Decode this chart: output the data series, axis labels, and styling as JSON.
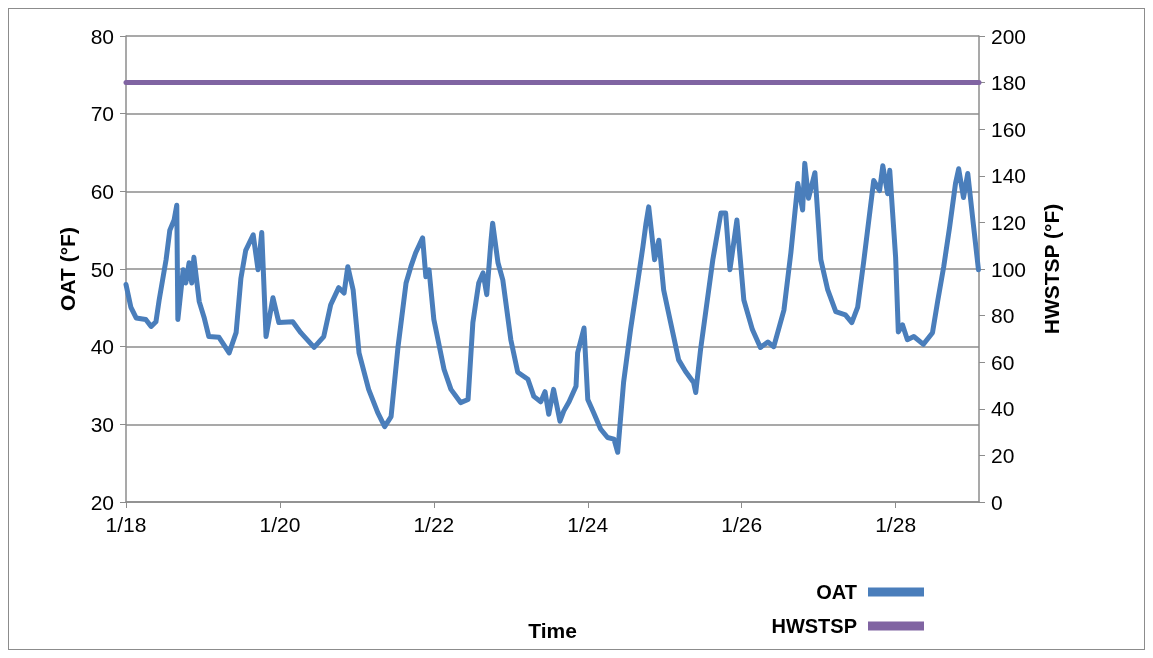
{
  "chart_data": {
    "type": "line",
    "xlabel": "Time",
    "ylabel": "OAT (°F)",
    "y2label": "HWSTSP (°F)",
    "xlim": [
      "--01-18",
      "--01-29T02:00"
    ],
    "xticks": [
      {
        "value": "--01-18",
        "label": "1/18"
      },
      {
        "value": "--01-20",
        "label": "1/20"
      },
      {
        "value": "--01-22",
        "label": "1/22"
      },
      {
        "value": "--01-24",
        "label": "1/24"
      },
      {
        "value": "--01-26",
        "label": "1/26"
      },
      {
        "value": "--01-28",
        "label": "1/28"
      }
    ],
    "ylim": [
      20,
      80
    ],
    "yticks": [
      20,
      30,
      40,
      50,
      60,
      70,
      80
    ],
    "y2lim": [
      0,
      200
    ],
    "y2ticks": [
      0,
      20,
      40,
      60,
      80,
      100,
      120,
      140,
      160,
      180,
      200
    ],
    "grid": "y",
    "legend": "bottom right",
    "marker": "none",
    "line_style": "solid",
    "series": [
      {
        "name": "OAT",
        "color": "#4a7ebb",
        "x": [
          "--01-18T00:00",
          "--01-18T01:30",
          "--01-18T03:10",
          "--01-18T06:10",
          "--01-18T07:50",
          "--01-18T09:20",
          "--01-18T10:20",
          "--01-18T12:30",
          "--01-18T13:40",
          "--01-18T15:00",
          "--01-18T15:50",
          "--01-18T16:10",
          "--01-18T17:50",
          "--01-18T18:40",
          "--01-18T19:40",
          "--01-18T20:30",
          "--01-18T21:10",
          "--01-18T22:50",
          "--01-19T00:20",
          "--01-19T01:50",
          "--01-19T05:00",
          "--01-19T08:10",
          "--01-19T10:20",
          "--01-19T11:50",
          "--01-19T13:20",
          "--01-19T15:40",
          "--01-19T17:10",
          "--01-19T18:20",
          "--01-19T19:40",
          "--01-19T21:50",
          "--01-19T23:40",
          "--01-20T04:00",
          "--01-20T06:30",
          "--01-20T10:40",
          "--01-20T13:40",
          "--01-20T15:50",
          "--01-20T18:20",
          "--01-20T20:00",
          "--01-20T21:10",
          "--01-20T22:50",
          "--01-21T00:40",
          "--01-21T03:40",
          "--01-21T06:30",
          "--01-21T08:40",
          "--01-21T10:40",
          "--01-21T12:50",
          "--01-21T15:20",
          "--01-21T16:50",
          "--01-21T18:20",
          "--01-21T20:30",
          "--01-21T21:30",
          "--01-21T22:30",
          "--01-22T00:00",
          "--01-22T03:10",
          "--01-22T05:20",
          "--01-22T08:20",
          "--01-22T10:40",
          "--01-22T12:10",
          "--01-22T14:00",
          "--01-22T15:20",
          "--01-22T16:30",
          "--01-22T17:50",
          "--01-22T18:20",
          "--01-22T20:00",
          "--01-22T21:30",
          "--01-23T00:00",
          "--01-23T02:10",
          "--01-23T05:20",
          "--01-23T07:10",
          "--01-23T09:20",
          "--01-23T10:40",
          "--01-23T11:50",
          "--01-23T13:20",
          "--01-23T15:20",
          "--01-23T16:30",
          "--01-23T18:10",
          "--01-23T20:20",
          "--01-23T20:50",
          "--01-23T22:50",
          "--01-24T00:00",
          "--01-24T01:50",
          "--01-24T04:00",
          "--01-24T06:10",
          "--01-24T08:10",
          "--01-24T09:20",
          "--01-24T11:10",
          "--01-24T13:20",
          "--01-24T15:40",
          "--01-24T17:10",
          "--01-24T18:10",
          "--01-24T19:00",
          "--01-24T20:50",
          "--01-24T22:10",
          "--01-24T23:40",
          "--01-25T01:50",
          "--01-25T04:20",
          "--01-25T06:30",
          "--01-25T09:00",
          "--01-25T09:40",
          "--01-25T11:10",
          "--01-25T15:00",
          "--01-25T17:30",
          "--01-25T19:00",
          "--01-25T20:20",
          "--01-25T22:30",
          "--01-26T00:40",
          "--01-26T03:20",
          "--01-26T05:50",
          "--01-26T08:10",
          "--01-26T10:00",
          "--01-26T13:10",
          "--01-26T15:20",
          "--01-26T17:30",
          "--01-26T19:00",
          "--01-26T19:40",
          "--01-26T20:50",
          "--01-26T22:50",
          "--01-27T00:40",
          "--01-27T02:50",
          "--01-27T05:20",
          "--01-27T08:20",
          "--01-27T10:20",
          "--01-27T12:10",
          "--01-27T14:00",
          "--01-27T17:10",
          "--01-27T19:00",
          "--01-27T20:00",
          "--01-27T21:30",
          "--01-27T22:10",
          "--01-28T00:00",
          "--01-28T00:50",
          "--01-28T02:10",
          "--01-28T03:40",
          "--01-28T05:40",
          "--01-28T08:40",
          "--01-28T11:30",
          "--01-28T13:10",
          "--01-28T15:00",
          "--01-28T16:50",
          "--01-28T18:40",
          "--01-28T19:40",
          "--01-28T21:10",
          "--01-28T22:30",
          "--01-29T00:20",
          "--01-29T01:50"
        ],
        "values": [
          48.0,
          45.1,
          43.7,
          43.5,
          42.6,
          43.2,
          46.0,
          51.2,
          55.0,
          56.3,
          58.2,
          43.5,
          49.9,
          48.2,
          50.8,
          48.2,
          51.5,
          45.8,
          43.8,
          41.3,
          41.2,
          39.2,
          41.8,
          48.8,
          52.4,
          54.4,
          49.9,
          54.7,
          41.3,
          46.3,
          43.1,
          43.2,
          41.8,
          39.9,
          41.3,
          45.4,
          47.6,
          46.9,
          50.3,
          47.3,
          39.2,
          34.5,
          31.5,
          29.7,
          31.0,
          40.0,
          48.2,
          50.3,
          52.1,
          54.0,
          49.0,
          49.9,
          43.5,
          37.1,
          34.5,
          32.8,
          33.2,
          43.1,
          48.2,
          49.5,
          46.7,
          53.7,
          55.9,
          50.8,
          48.6,
          40.9,
          36.7,
          35.8,
          33.6,
          32.9,
          34.2,
          31.3,
          34.5,
          30.4,
          31.7,
          32.9,
          34.9,
          39.2,
          42.4,
          33.2,
          31.5,
          29.4,
          28.3,
          28.1,
          26.4,
          35.4,
          42.2,
          48.6,
          52.8,
          55.9,
          58.0,
          51.2,
          53.7,
          47.3,
          43.1,
          38.3,
          36.8,
          35.4,
          34.1,
          39.6,
          51.2,
          57.2,
          57.2,
          49.9,
          56.3,
          46.0,
          42.2,
          39.9,
          40.6,
          40.0,
          44.7,
          52.1,
          61.0,
          57.6,
          63.6,
          59.1,
          62.4,
          51.2,
          47.3,
          44.5,
          44.1,
          43.1,
          45.1,
          50.8,
          61.4,
          60.1,
          63.3,
          59.7,
          62.7,
          51.5,
          41.9,
          42.8,
          40.9,
          41.3,
          40.3,
          41.8,
          46.0,
          50.3,
          55.4,
          61.0,
          62.9,
          59.2,
          62.3,
          55.4,
          49.9
        ]
      },
      {
        "name": "HWSTSP",
        "color": "#8064a2",
        "axis": "y2",
        "x": [
          "--01-18",
          "--01-29T02:00"
        ],
        "values": [
          180,
          180
        ]
      }
    ]
  }
}
